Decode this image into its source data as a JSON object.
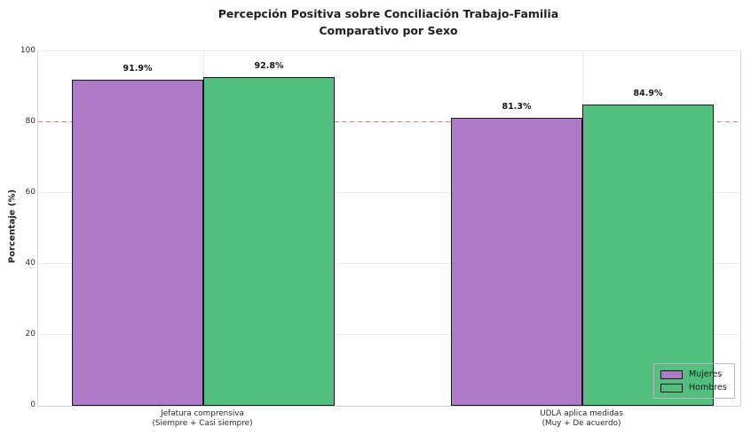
{
  "title": {
    "line1": "Percepción Positiva sobre Conciliación Trabajo-Familia",
    "line2": "Comparativo por Sexo"
  },
  "axes": {
    "y_label": "Porcentaje (%)",
    "y_ticks": [
      0,
      20,
      40,
      60,
      80,
      100
    ],
    "x_tick_lines": [
      [
        "Jefatura comprensiva",
        "(Siempre + Casi siempre)"
      ],
      [
        "UDLA aplica medidas",
        "(Muy + De acuerdo)"
      ]
    ]
  },
  "chart_data": {
    "type": "bar",
    "title": "Percepción Positiva sobre Conciliación Trabajo-Familia — Comparativo por Sexo",
    "categories": [
      "Jefatura comprensiva (Siempre + Casi siempre)",
      "UDLA aplica medidas (Muy + De acuerdo)"
    ],
    "series": [
      {
        "name": "Mujeres",
        "color": "#AF7AC5",
        "values": [
          91.9,
          81.3
        ],
        "value_labels": [
          "91.9%",
          "81.3%"
        ]
      },
      {
        "name": "Hombres",
        "color": "#52BE80",
        "values": [
          92.8,
          84.9
        ],
        "value_labels": [
          "92.8%",
          "84.9%"
        ]
      }
    ],
    "ylabel": "Porcentaje (%)",
    "ylim": [
      0,
      100
    ],
    "yticks": [
      0,
      20,
      40,
      60,
      80,
      100
    ],
    "reference_line": {
      "y": 80,
      "style": "dashed",
      "color": "#E57373"
    },
    "bar_edge_color": "#181818",
    "grid": true,
    "legend_position": "lower right",
    "legend_entries": [
      "Mujeres",
      "Hombres"
    ]
  }
}
